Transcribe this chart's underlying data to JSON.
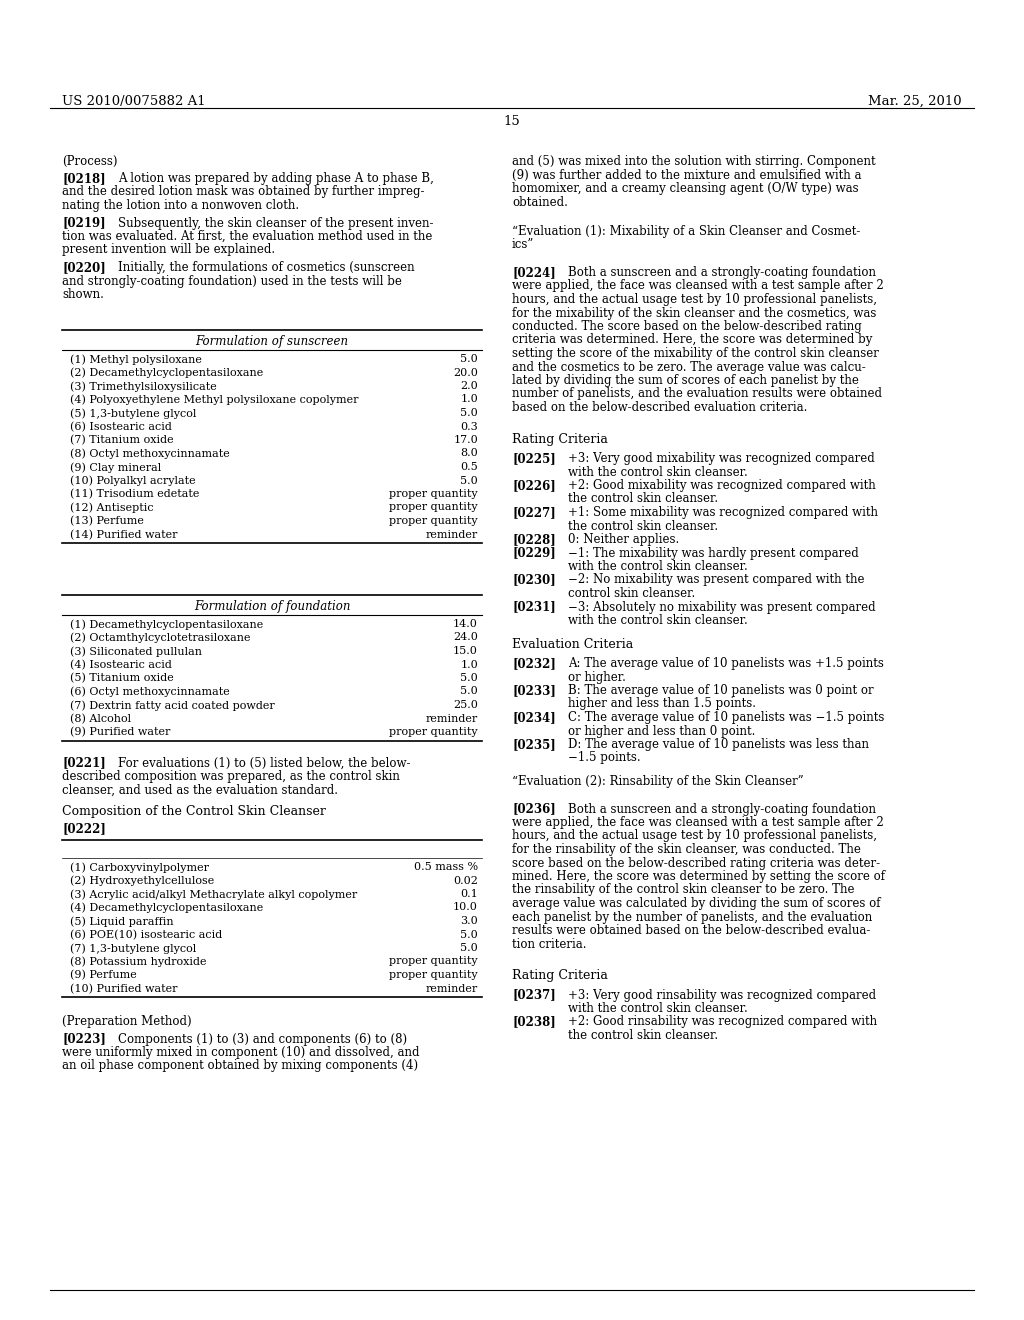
{
  "bg_color": "#ffffff",
  "header_left": "US 2010/0075882 A1",
  "header_right": "Mar. 25, 2010",
  "page_number": "15",
  "table1_rows": [
    [
      "(1) Methyl polysiloxane",
      "5.0"
    ],
    [
      "(2) Decamethylcyclopentasiloxane",
      "20.0"
    ],
    [
      "(3) Trimethylsiloxysilicate",
      "2.0"
    ],
    [
      "(4) Polyoxyethylene Methyl polysiloxane copolymer",
      "1.0"
    ],
    [
      "(5) 1,3-butylene glycol",
      "5.0"
    ],
    [
      "(6) Isostearic acid",
      "0.3"
    ],
    [
      "(7) Titanium oxide",
      "17.0"
    ],
    [
      "(8) Octyl methoxycinnamate",
      "8.0"
    ],
    [
      "(9) Clay mineral",
      "0.5"
    ],
    [
      "(10) Polyalkyl acrylate",
      "5.0"
    ],
    [
      "(11) Trisodium edetate",
      "proper quantity"
    ],
    [
      "(12) Antiseptic",
      "proper quantity"
    ],
    [
      "(13) Perfume",
      "proper quantity"
    ],
    [
      "(14) Purified water",
      "reminder"
    ]
  ],
  "table2_rows": [
    [
      "(1) Decamethylcyclopentasiloxane",
      "14.0"
    ],
    [
      "(2) Octamthylcyclotetrasiloxane",
      "24.0"
    ],
    [
      "(3) Siliconated pullulan",
      "15.0"
    ],
    [
      "(4) Isostearic acid",
      "1.0"
    ],
    [
      "(5) Titanium oxide",
      "5.0"
    ],
    [
      "(6) Octyl methoxycinnamate",
      "5.0"
    ],
    [
      "(7) Dextrin fatty acid coated powder",
      "25.0"
    ],
    [
      "(8) Alcohol",
      "reminder"
    ],
    [
      "(9) Purified water",
      "proper quantity"
    ]
  ],
  "table3_rows": [
    [
      "(1) Carboxyvinylpolymer",
      "0.5 mass %"
    ],
    [
      "(2) Hydroxyethylcellulose",
      "0.02"
    ],
    [
      "(3) Acrylic acid/alkyl Methacrylate alkyl copolymer",
      "0.1"
    ],
    [
      "(4) Decamethylcyclopentasiloxane",
      "10.0"
    ],
    [
      "(5) Liquid paraffin",
      "3.0"
    ],
    [
      "(6) POE(10) isostearic acid",
      "5.0"
    ],
    [
      "(7) 1,3-butylene glycol",
      "5.0"
    ],
    [
      "(8) Potassium hydroxide",
      "proper quantity"
    ],
    [
      "(9) Perfume",
      "proper quantity"
    ],
    [
      "(10) Purified water",
      "reminder"
    ]
  ],
  "left_lines": [
    [
      "(Process)",
      false
    ],
    [
      "[0218]",
      true,
      "A lotion was prepared by adding phase A to phase B,",
      "and the desired lotion mask was obtained by further impreg-",
      "nating the lotion into a nonwoven cloth."
    ],
    [
      "[0219]",
      true,
      "Subsequently, the skin cleanser of the present inven-",
      "tion was evaluated. At first, the evaluation method used in the",
      "present invention will be explained."
    ],
    [
      "[0220]",
      true,
      "Initially, the formulations of cosmetics (sunscreen",
      "and strongly-coating foundation) used in the tests will be",
      "shown."
    ]
  ],
  "right_continuation": [
    "and (5) was mixed into the solution with stirring. Component",
    "(9) was further added to the mixture and emulsified with a",
    "homomixer, and a creamy cleansing agent (O/W type) was",
    "obtained."
  ],
  "eval1_title": [
    "“Evaluation (1): Mixability of a Skin Cleanser and Cosmet-",
    "ics”"
  ],
  "para_0224": [
    "[0224]",
    "Both a sunscreen and a strongly-coating foundation",
    "were applied, the face was cleansed with a test sample after 2",
    "hours, and the actual usage test by 10 professional panelists,",
    "for the mixability of the skin cleanser and the cosmetics, was",
    "conducted. The score based on the below-described rating",
    "criteria was determined. Here, the score was determined by",
    "setting the score of the mixability of the control skin cleanser",
    "and the cosmetics to be zero. The average value was calcu-",
    "lated by dividing the sum of scores of each panelist by the",
    "number of panelists, and the evaluation results were obtained",
    "based on the below-described evaluation criteria."
  ],
  "rating_items_1": [
    [
      "[0225]",
      "+3: Very good mixability was recognized compared",
      "with the control skin cleanser."
    ],
    [
      "[0226]",
      "+2: Good mixability was recognized compared with",
      "the control skin cleanser."
    ],
    [
      "[0227]",
      "+1: Some mixability was recognized compared with",
      "the control skin cleanser."
    ],
    [
      "[0228]",
      "0: Neither applies.",
      null
    ],
    [
      "[0229]",
      "−1: The mixability was hardly present compared",
      "with the control skin cleanser."
    ],
    [
      "[0230]",
      "−2: No mixability was present compared with the",
      "control skin cleanser."
    ],
    [
      "[0231]",
      "−3: Absolutely no mixability was present compared",
      "with the control skin cleanser."
    ]
  ],
  "eval_criteria_items": [
    [
      "[0232]",
      "A: The average value of 10 panelists was +1.5 points",
      "or higher."
    ],
    [
      "[0233]",
      "B: The average value of 10 panelists was 0 point or",
      "higher and less than 1.5 points."
    ],
    [
      "[0234]",
      "C: The average value of 10 panelists was −1.5 points",
      "or higher and less than 0 point."
    ],
    [
      "[0235]",
      "D: The average value of 10 panelists was less than",
      "−1.5 points."
    ]
  ],
  "eval2_title": "“Evaluation (2): Rinsability of the Skin Cleanser”",
  "para_0236": [
    "[0236]",
    "Both a sunscreen and a strongly-coating foundation",
    "were applied, the face was cleansed with a test sample after 2",
    "hours, and the actual usage test by 10 professional panelists,",
    "for the rinsability of the skin cleanser, was conducted. The",
    "score based on the below-described rating criteria was deter-",
    "mined. Here, the score was determined by setting the score of",
    "the rinsability of the control skin cleanser to be zero. The",
    "average value was calculated by dividing the sum of scores of",
    "each panelist by the number of panelists, and the evaluation",
    "results were obtained based on the below-described evalua-",
    "tion criteria."
  ],
  "rating_items_2": [
    [
      "[0237]",
      "+3: Very good rinsability was recognized compared",
      "with the control skin cleanser."
    ],
    [
      "[0238]",
      "+2: Good rinsability was recognized compared with",
      "the control skin cleanser."
    ]
  ]
}
